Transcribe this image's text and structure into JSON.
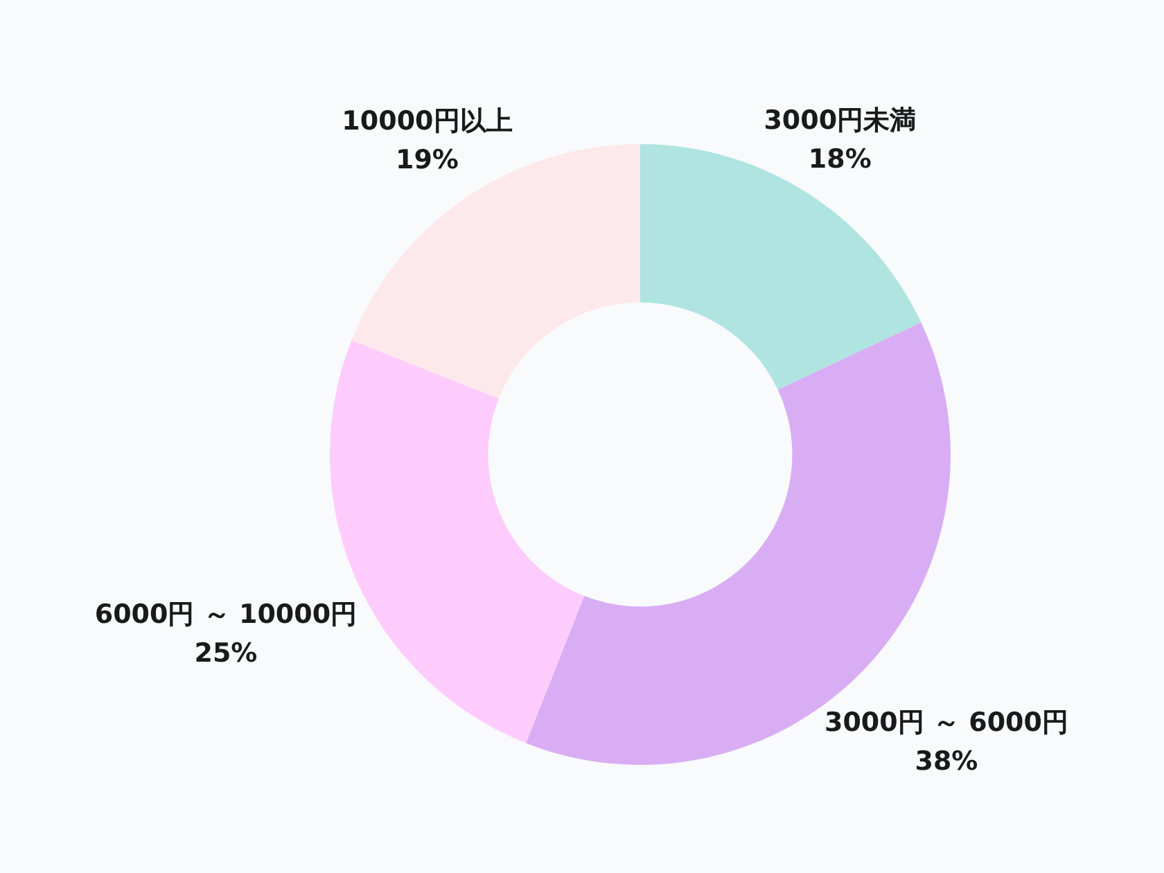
{
  "chart_data": {
    "type": "donut",
    "categories": [
      "3000円未満",
      "3000円 ～ 6000円",
      "6000円 ～ 10000円",
      "10000円以上"
    ],
    "values": [
      18,
      38,
      25,
      19
    ],
    "colors": [
      "#afe4e1",
      "#d9adf3",
      "#fdccfc",
      "#fde8eb"
    ],
    "value_labels": [
      "18%",
      "38%",
      "25%",
      "19%"
    ]
  }
}
